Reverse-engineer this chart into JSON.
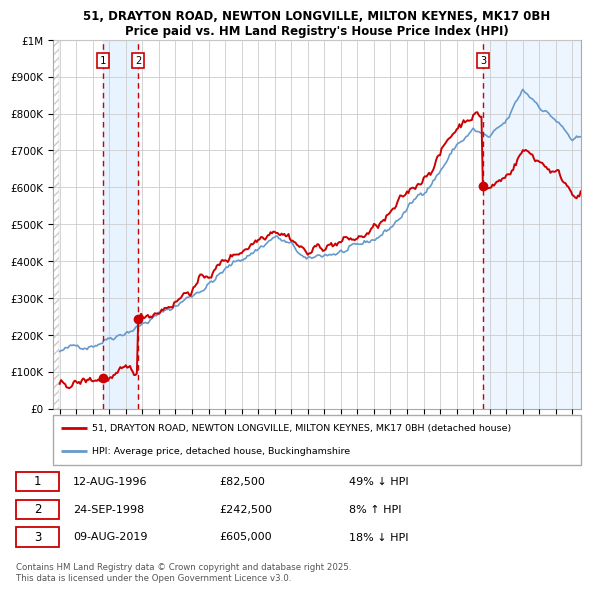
{
  "title_line1": "51, DRAYTON ROAD, NEWTON LONGVILLE, MILTON KEYNES, MK17 0BH",
  "title_line2": "Price paid vs. HM Land Registry's House Price Index (HPI)",
  "ylim": [
    0,
    1000000
  ],
  "xlim_year": [
    1993.58,
    2025.5
  ],
  "yticks": [
    0,
    100000,
    200000,
    300000,
    400000,
    500000,
    600000,
    700000,
    800000,
    900000,
    1000000
  ],
  "ytick_labels": [
    "£0",
    "£100K",
    "£200K",
    "£300K",
    "£400K",
    "£500K",
    "£600K",
    "£700K",
    "£800K",
    "£900K",
    "£1M"
  ],
  "xticks": [
    1994,
    1995,
    1996,
    1997,
    1998,
    1999,
    2000,
    2001,
    2002,
    2003,
    2004,
    2005,
    2006,
    2007,
    2008,
    2009,
    2010,
    2011,
    2012,
    2013,
    2014,
    2015,
    2016,
    2017,
    2018,
    2019,
    2020,
    2021,
    2022,
    2023,
    2024,
    2025
  ],
  "sale_dates": [
    1996.62,
    1998.73,
    2019.6
  ],
  "sale_prices": [
    82500,
    242500,
    605000
  ],
  "sale_labels": [
    "1",
    "2",
    "3"
  ],
  "legend_line1": "51, DRAYTON ROAD, NEWTON LONGVILLE, MILTON KEYNES, MK17 0BH (detached house)",
  "legend_line2": "HPI: Average price, detached house, Buckinghamshire",
  "table_rows": [
    [
      "1",
      "12-AUG-1996",
      "£82,500",
      "49% ↓ HPI"
    ],
    [
      "2",
      "24-SEP-1998",
      "£242,500",
      "8% ↑ HPI"
    ],
    [
      "3",
      "09-AUG-2019",
      "£605,000",
      "18% ↓ HPI"
    ]
  ],
  "footnote": "Contains HM Land Registry data © Crown copyright and database right 2025.\nThis data is licensed under the Open Government Licence v3.0.",
  "red_color": "#cc0000",
  "blue_color": "#6699cc",
  "shade_color": "#ddeeff",
  "grid_color": "#cccccc",
  "hatch_color": "#cccccc",
  "bg_color": "#ffffff",
  "hpi_knots_x": [
    1994,
    1995,
    1996,
    1997,
    1998,
    1999,
    2000,
    2001,
    2002,
    2003,
    2004,
    2005,
    2006,
    2007,
    2008,
    2009,
    2010,
    2011,
    2012,
    2013,
    2014,
    2015,
    2016,
    2017,
    2018,
    2019,
    2020,
    2021,
    2022,
    2023,
    2024,
    2025
  ],
  "hpi_knots_y": [
    155000,
    165000,
    178000,
    198000,
    215000,
    232000,
    255000,
    278000,
    308000,
    340000,
    375000,
    405000,
    435000,
    468000,
    440000,
    395000,
    415000,
    425000,
    430000,
    455000,
    490000,
    540000,
    590000,
    648000,
    715000,
    755000,
    730000,
    770000,
    860000,
    825000,
    785000,
    725000
  ]
}
